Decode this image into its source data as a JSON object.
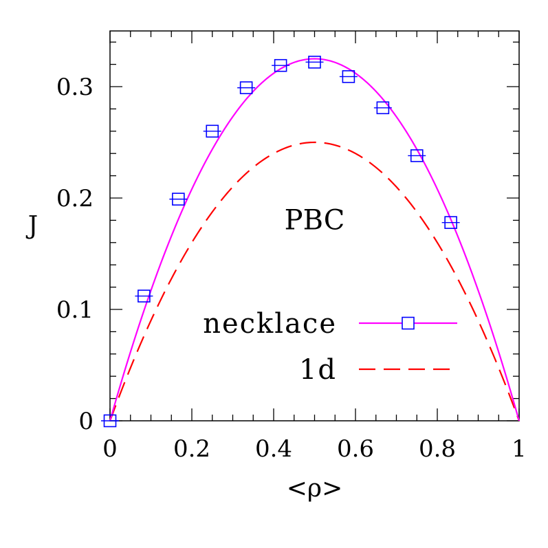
{
  "chart_data": {
    "type": "line",
    "title": "",
    "xlabel": "<ρ>",
    "ylabel": "J",
    "xlim": [
      0,
      1
    ],
    "ylim": [
      0,
      0.35
    ],
    "x_ticks": [
      "0",
      "0.2",
      "0.4",
      "0.6",
      "0.8",
      "1"
    ],
    "y_ticks": [
      "0",
      "0.1",
      "0.2",
      "0.3"
    ],
    "x_tick_values": [
      0,
      0.2,
      0.4,
      0.6,
      0.8,
      1
    ],
    "y_tick_values": [
      0,
      0.1,
      0.2,
      0.3
    ],
    "annotation": "PBC",
    "legend_placement": "lower-right",
    "series": [
      {
        "name": "necklace",
        "style": "solid line with square markers",
        "color": "#ff00ff",
        "marker_color": "#0000ff",
        "curve_peak": 0.325,
        "points": {
          "x": [
            0.0,
            0.083,
            0.167,
            0.25,
            0.333,
            0.417,
            0.5,
            0.583,
            0.667,
            0.75,
            0.833
          ],
          "y": [
            0.0,
            0.112,
            0.199,
            0.26,
            0.299,
            0.319,
            0.322,
            0.309,
            0.281,
            0.238,
            0.178
          ]
        }
      },
      {
        "name": "1d",
        "style": "dashed line",
        "color": "#ff0000",
        "formula": "J = ρ(1 − ρ)"
      }
    ]
  }
}
